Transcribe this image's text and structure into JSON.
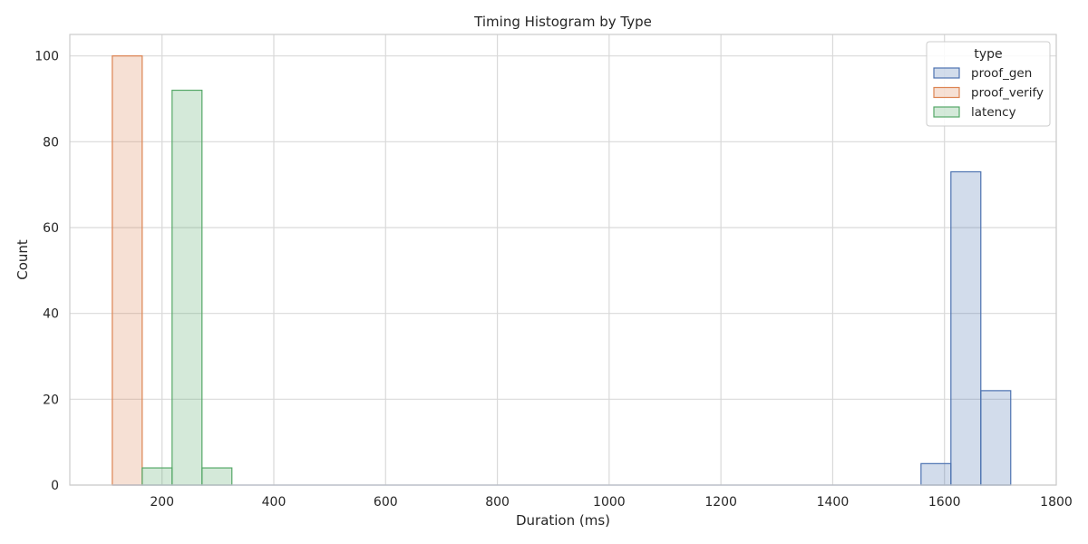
{
  "chart_data": {
    "type": "histogram",
    "title": "Timing Histogram by Type",
    "xlabel": "Duration (ms)",
    "ylabel": "Count",
    "xlim": [
      35,
      1800
    ],
    "ylim": [
      0,
      105
    ],
    "xticks": [
      200,
      400,
      600,
      800,
      1000,
      1200,
      1400,
      1600,
      1800
    ],
    "yticks": [
      0,
      20,
      40,
      60,
      80,
      100
    ],
    "grid": true,
    "bin_width": 53.5,
    "baseline_range": [
      111,
      1718
    ],
    "legend": {
      "title": "type",
      "placement": "top-right"
    },
    "series": [
      {
        "name": "proof_gen",
        "color": "#4c72b0",
        "bins": [
          {
            "x0": 1558,
            "x1": 1611.5,
            "count": 5
          },
          {
            "x0": 1611.5,
            "x1": 1665,
            "count": 73
          },
          {
            "x0": 1665,
            "x1": 1718.5,
            "count": 22
          }
        ]
      },
      {
        "name": "proof_verify",
        "color": "#dd8452",
        "bins": [
          {
            "x0": 111,
            "x1": 164.5,
            "count": 100
          }
        ]
      },
      {
        "name": "latency",
        "color": "#55a868",
        "bins": [
          {
            "x0": 164.5,
            "x1": 218,
            "count": 4
          },
          {
            "x0": 218,
            "x1": 271.5,
            "count": 92
          },
          {
            "x0": 271.5,
            "x1": 325,
            "count": 4
          }
        ]
      }
    ]
  }
}
